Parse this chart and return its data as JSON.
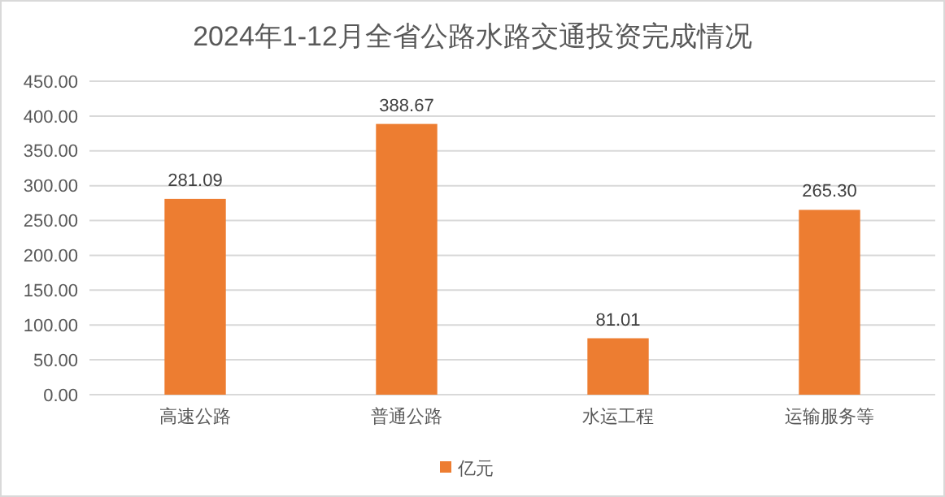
{
  "chart_data": {
    "type": "bar",
    "title": "2024年1-12月全省公路水路交通投资完成情况",
    "categories": [
      "高速公路",
      "普通公路",
      "水运工程",
      "运输服务等"
    ],
    "series": [
      {
        "name": "亿元",
        "color": "#ed7d31",
        "values": [
          281.09,
          388.67,
          81.01,
          265.3
        ],
        "value_labels": [
          "281.09",
          "388.67",
          "81.01",
          "265.30"
        ]
      }
    ],
    "ylim": [
      0,
      450
    ],
    "yticks": [
      {
        "value": 0,
        "label": "0.00"
      },
      {
        "value": 50,
        "label": "50.00"
      },
      {
        "value": 100,
        "label": "100.00"
      },
      {
        "value": 150,
        "label": "150.00"
      },
      {
        "value": 200,
        "label": "200.00"
      },
      {
        "value": 250,
        "label": "250.00"
      },
      {
        "value": 300,
        "label": "300.00"
      },
      {
        "value": 350,
        "label": "350.00"
      },
      {
        "value": 400,
        "label": "400.00"
      },
      {
        "value": 450,
        "label": "450.00"
      }
    ],
    "grid": "y",
    "legend": "bottom"
  }
}
